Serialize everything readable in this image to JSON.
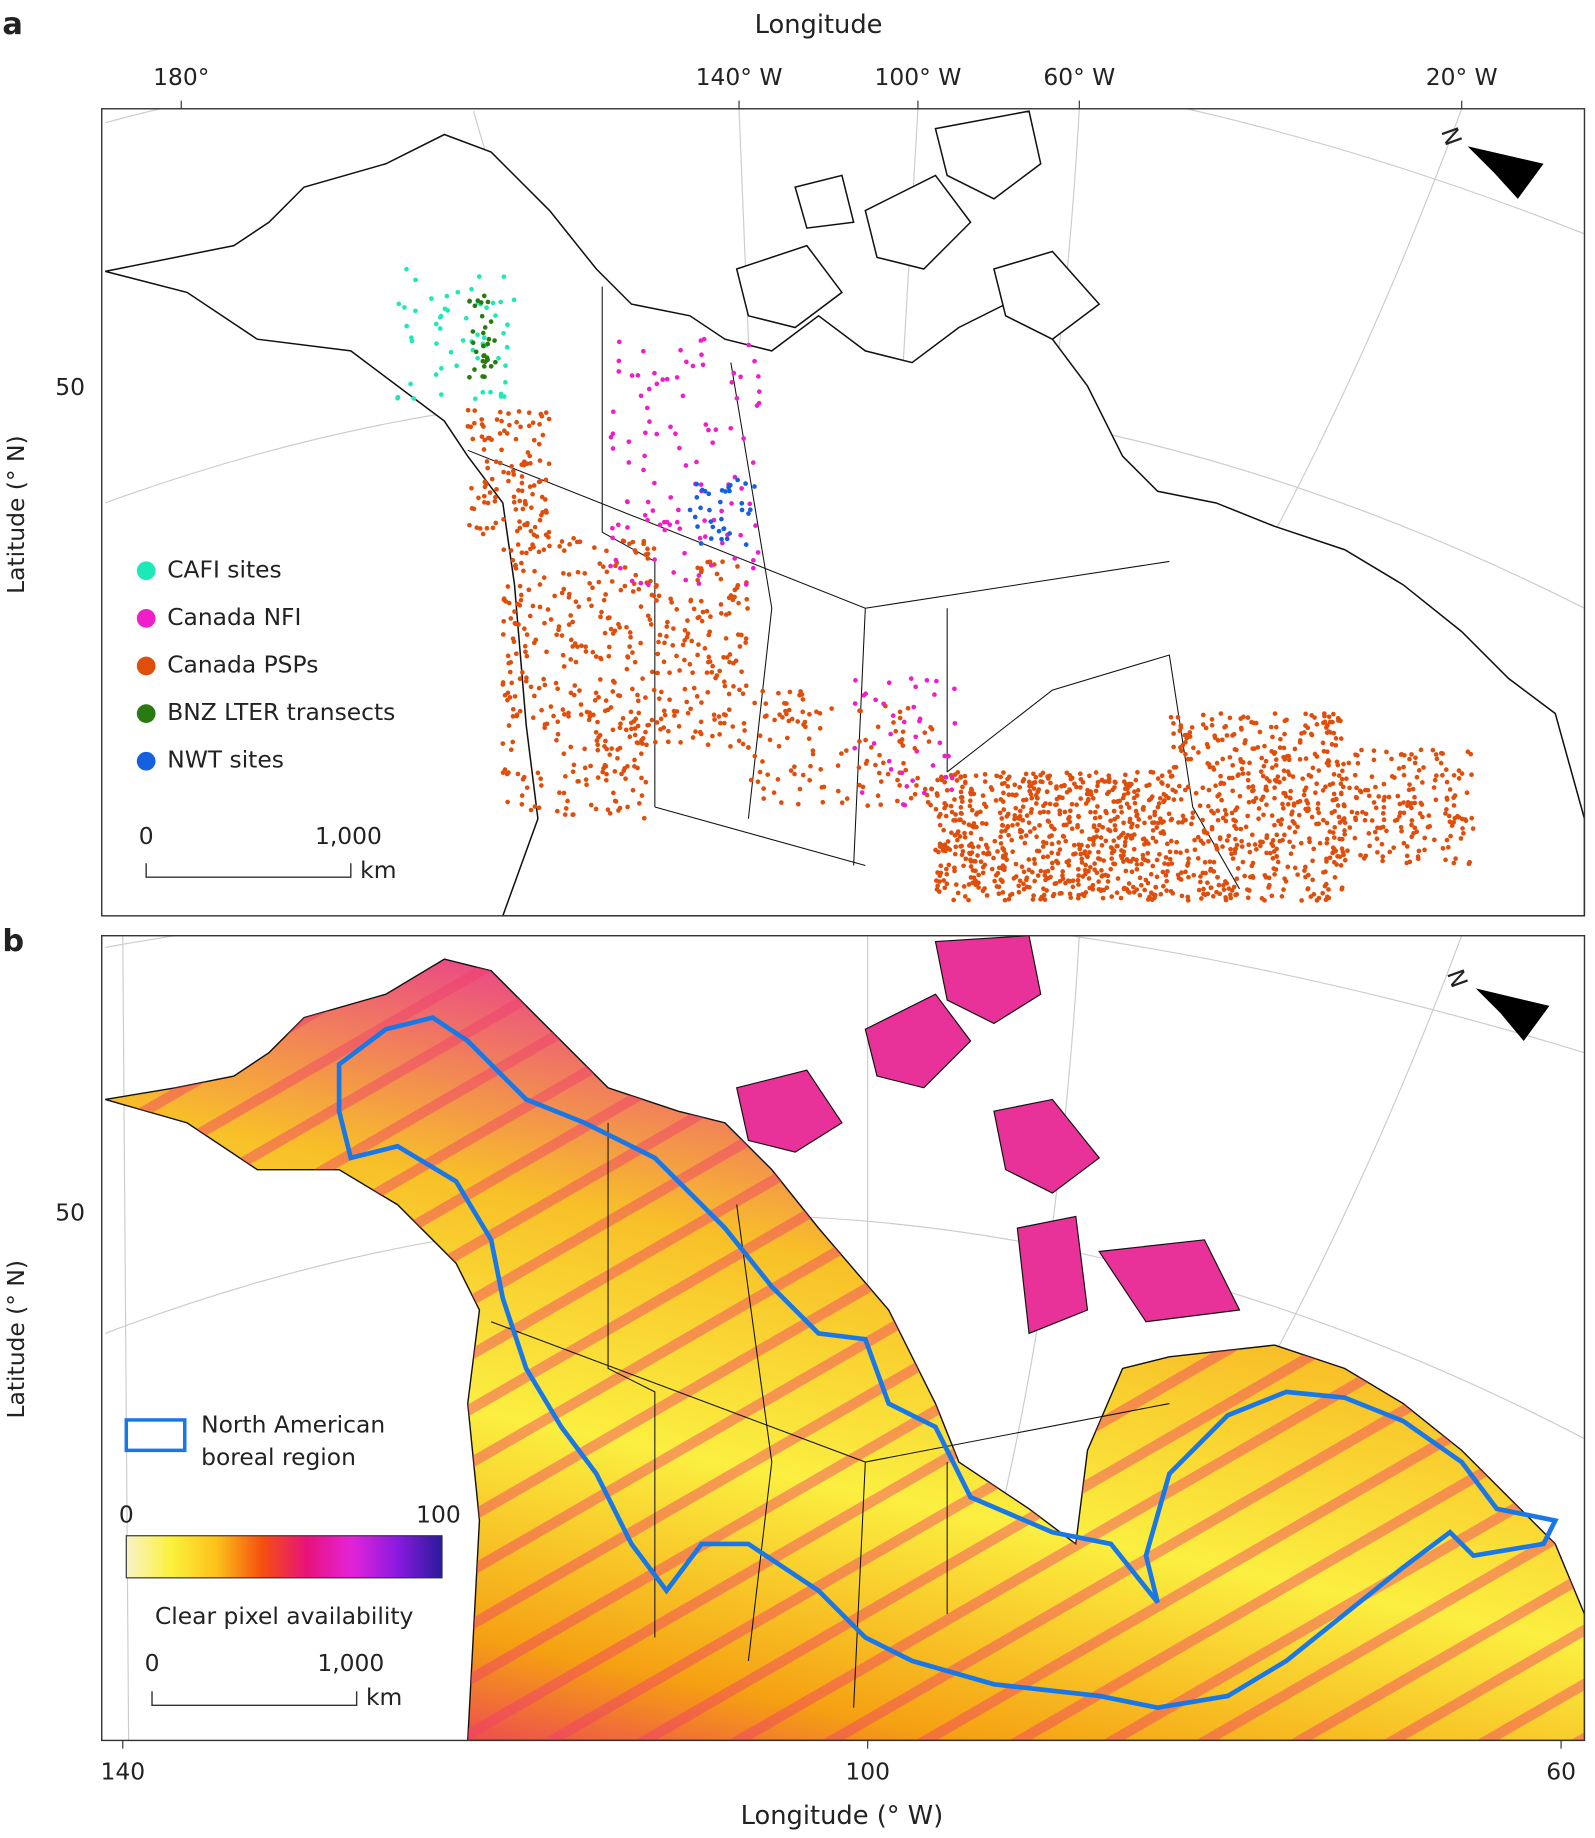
{
  "panels": [
    {
      "label": "a",
      "top_axis_title": "Longitude",
      "top_ticks": [
        "180°",
        "140° W",
        "100° W",
        "60° W",
        "20° W"
      ],
      "left_ticks": [
        "50"
      ],
      "left_axis_title": "Latitude (° N)",
      "north": "N",
      "legend": [
        {
          "label": "CAFI sites",
          "color": "#1de9b6"
        },
        {
          "label": "Canada NFI",
          "color": "#ee1fc8"
        },
        {
          "label": "Canada PSPs",
          "color": "#e04e0c"
        },
        {
          "label": "BNZ LTER transects",
          "color": "#2a7a12"
        },
        {
          "label": "NWT sites",
          "color": "#1560e0"
        }
      ],
      "scale_bar": {
        "start": "0",
        "end": "1,000",
        "unit": "km"
      }
    },
    {
      "label": "b",
      "left_ticks": [
        "50"
      ],
      "left_axis_title": "Latitude (° N)",
      "bottom_ticks": [
        "140",
        "100",
        "60"
      ],
      "bottom_axis_title": "Longitude (° W)",
      "north": "N",
      "boundary_legend": {
        "label_lines": [
          "North American",
          "boreal region"
        ],
        "color": "#1a78e6"
      },
      "colorbar": {
        "min": "0",
        "max": "100",
        "title": "Clear pixel availability",
        "colors": [
          "#f8f3c8",
          "#fbf13c",
          "#fcc21a",
          "#f5500e",
          "#e8127a",
          "#e423d8",
          "#8a1ae0",
          "#2a1a9a"
        ]
      },
      "scale_bar": {
        "start": "0",
        "end": "1,000",
        "unit": "km"
      }
    }
  ]
}
